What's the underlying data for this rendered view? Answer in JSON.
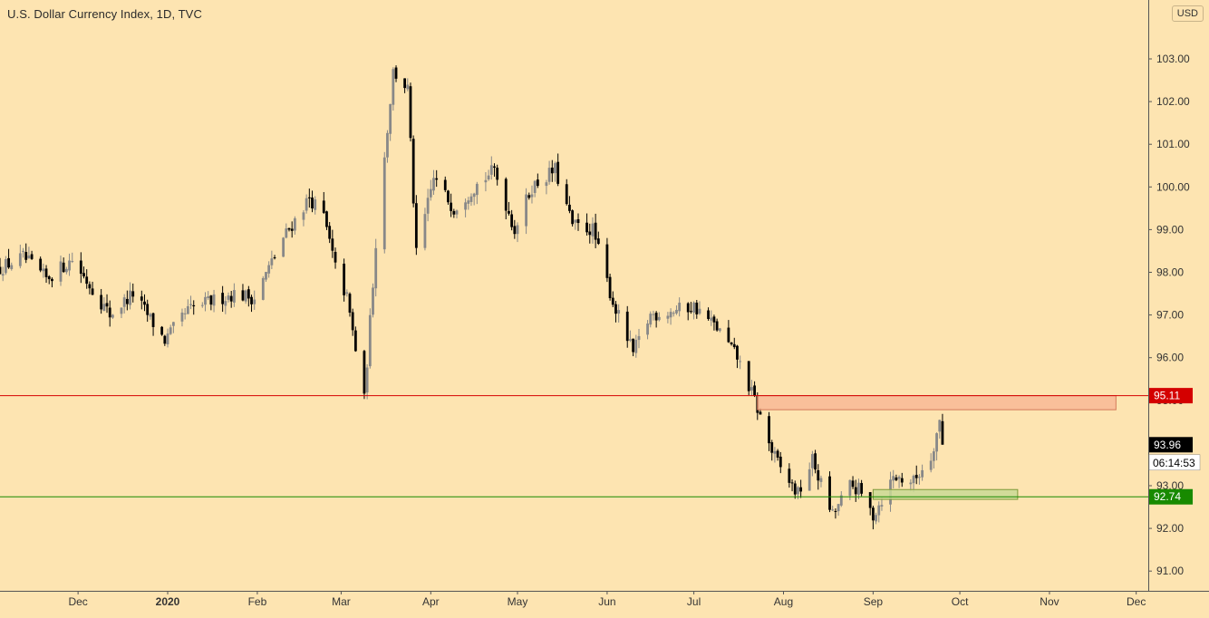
{
  "header": {
    "title": "U.S. Dollar Currency Index, 1D, TVC",
    "currency": "USD"
  },
  "price_scale": {
    "labels": [
      "103.00",
      "102.00",
      "101.00",
      "100.00",
      "99.00",
      "98.00",
      "97.00",
      "96.00",
      "95.00",
      "94.00",
      "93.00",
      "92.00",
      "91.00"
    ],
    "current_price": "93.96",
    "countdown": "06:14:53"
  },
  "levels": {
    "resistance": {
      "value": 95.11,
      "label": "95.11",
      "color": "#d40000"
    },
    "support": {
      "value": 92.74,
      "label": "92.74",
      "color": "#188a00"
    }
  },
  "zones": {
    "resistance_zone": {
      "x_from": "2020-07-23",
      "x_to": "2020-11-24",
      "y_from": 94.78,
      "y_to": 95.11,
      "color": "#f8b996"
    },
    "support_zone": {
      "x_from": "2020-09-01",
      "x_to": "2020-10-21",
      "y_from": 92.68,
      "y_to": 92.91,
      "color": "#c9d995"
    }
  },
  "time_axis": {
    "labels": [
      "Dec",
      "2020",
      "Feb",
      "Mar",
      "Apr",
      "May",
      "Jun",
      "Jul",
      "Aug",
      "Sep",
      "Oct",
      "Nov",
      "Dec"
    ]
  },
  "colors": {
    "background": "#fde4b1",
    "bull_candle": "#888888",
    "bear_candle": "#000000",
    "axis_text": "#333333"
  },
  "chart_data": {
    "type": "candlestick",
    "title": "U.S. Dollar Currency Index, 1D, TVC",
    "xlabel": "",
    "ylabel": "",
    "ylim": [
      90.5,
      104.1
    ],
    "x_range": [
      "2019-11-04",
      "2020-12-05"
    ],
    "grid": false,
    "series": [
      {
        "close_anchors": [
          [
            "2019-11-04",
            98.1
          ],
          [
            "2019-11-12",
            98.35
          ],
          [
            "2019-11-20",
            97.85
          ],
          [
            "2019-11-29",
            98.3
          ],
          [
            "2019-12-05",
            97.7
          ],
          [
            "2019-12-12",
            97.0
          ],
          [
            "2019-12-20",
            97.5
          ],
          [
            "2019-12-31",
            96.4
          ],
          [
            "2020-01-08",
            97.1
          ],
          [
            "2020-01-15",
            97.3
          ],
          [
            "2020-01-24",
            97.5
          ],
          [
            "2020-01-31",
            97.4
          ],
          [
            "2020-02-10",
            98.8
          ],
          [
            "2020-02-19",
            99.75
          ],
          [
            "2020-02-24",
            99.3
          ],
          [
            "2020-02-28",
            98.1
          ],
          [
            "2020-03-03",
            97.4
          ],
          [
            "2020-03-09",
            95.0
          ],
          [
            "2020-03-13",
            98.7
          ],
          [
            "2020-03-19",
            102.7
          ],
          [
            "2020-03-24",
            102.3
          ],
          [
            "2020-03-27",
            98.4
          ],
          [
            "2020-04-02",
            100.2
          ],
          [
            "2020-04-09",
            99.5
          ],
          [
            "2020-04-16",
            100.0
          ],
          [
            "2020-04-23",
            100.4
          ],
          [
            "2020-04-30",
            99.0
          ],
          [
            "2020-05-06",
            100.0
          ],
          [
            "2020-05-14",
            100.4
          ],
          [
            "2020-05-20",
            99.1
          ],
          [
            "2020-05-27",
            99.0
          ],
          [
            "2020-06-03",
            97.3
          ],
          [
            "2020-06-10",
            96.1
          ],
          [
            "2020-06-16",
            97.0
          ],
          [
            "2020-06-24",
            97.1
          ],
          [
            "2020-07-01",
            97.2
          ],
          [
            "2020-07-09",
            96.7
          ],
          [
            "2020-07-16",
            96.0
          ],
          [
            "2020-07-22",
            95.0
          ],
          [
            "2020-07-28",
            93.8
          ],
          [
            "2020-07-31",
            93.4
          ],
          [
            "2020-08-06",
            92.8
          ],
          [
            "2020-08-11",
            93.6
          ],
          [
            "2020-08-18",
            92.3
          ],
          [
            "2020-08-24",
            93.0
          ],
          [
            "2020-08-27",
            92.9
          ],
          [
            "2020-09-01",
            92.3
          ],
          [
            "2020-09-08",
            93.2
          ],
          [
            "2020-09-15",
            93.1
          ],
          [
            "2020-09-21",
            93.7
          ],
          [
            "2020-09-24",
            94.5
          ],
          [
            "2020-09-27",
            93.96
          ]
        ]
      }
    ]
  }
}
